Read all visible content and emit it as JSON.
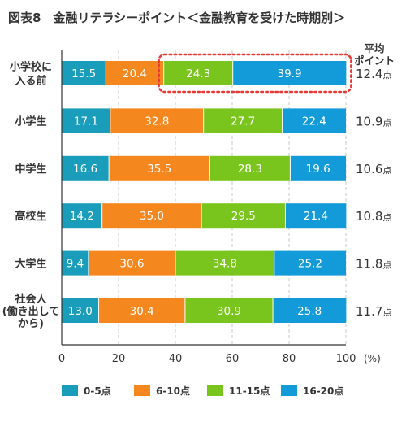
{
  "title": "図表8　金融リテラシーポイント＜金融教育を受けた時期別＞",
  "avg_header": [
    "平均",
    "ポイント"
  ],
  "avg_unit": "点",
  "x_unit": "(%)",
  "chart_data": {
    "type": "bar",
    "orientation": "horizontal",
    "stacked": true,
    "categories": [
      [
        "小学校に",
        "入る前"
      ],
      [
        "小学生"
      ],
      [
        "中学生"
      ],
      [
        "高校生"
      ],
      [
        "大学生"
      ],
      [
        "社会人",
        "(働き出して",
        "から)"
      ]
    ],
    "series": [
      {
        "name": "0-5点",
        "color": "#1a9dbb",
        "values": [
          15.5,
          17.1,
          16.6,
          14.2,
          9.4,
          13.0
        ]
      },
      {
        "name": "6-10点",
        "color": "#f5871f",
        "values": [
          20.4,
          32.8,
          35.5,
          35.0,
          30.6,
          30.4
        ]
      },
      {
        "name": "11-15点",
        "color": "#7ac51d",
        "values": [
          24.3,
          27.7,
          28.3,
          29.5,
          34.8,
          30.9
        ]
      },
      {
        "name": "16-20点",
        "color": "#139ad8",
        "values": [
          39.9,
          22.4,
          19.6,
          21.4,
          25.2,
          25.8
        ]
      }
    ],
    "averages": [
      "12.4",
      "10.9",
      "10.6",
      "10.8",
      "11.8",
      "11.7"
    ],
    "xlim": [
      0,
      100
    ],
    "xticks": [
      0,
      20,
      40,
      60,
      80,
      100
    ],
    "grid": true,
    "legend": "bottom",
    "highlight": {
      "row": 0,
      "series": [
        2,
        3
      ],
      "color": "#e53935",
      "style": "dotted"
    }
  }
}
